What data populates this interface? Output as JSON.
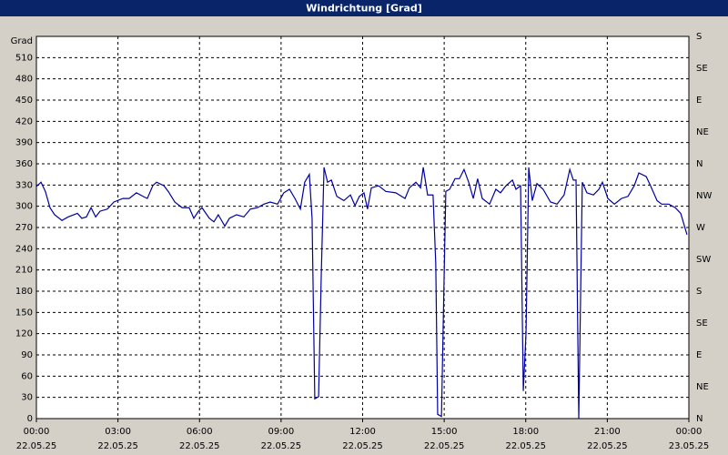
{
  "chart_data": {
    "type": "line",
    "title": "Windrichtung [Grad]",
    "ylabel": "Grad",
    "x": [
      0,
      0.17,
      0.33,
      0.5,
      0.67,
      0.94,
      1.17,
      1.51,
      1.67,
      1.84,
      2.01,
      2.18,
      2.34,
      2.61,
      2.85,
      3.18,
      3.41,
      3.68,
      3.92,
      4.08,
      4.28,
      4.42,
      4.69,
      4.85,
      5.09,
      5.36,
      5.62,
      5.79,
      5.96,
      6.09,
      6.36,
      6.53,
      6.69,
      6.93,
      7.1,
      7.36,
      7.63,
      7.87,
      8.13,
      8.37,
      8.6,
      8.87,
      9.1,
      9.31,
      9.51,
      9.71,
      9.87,
      10.04,
      10.14,
      10.24,
      10.38,
      10.48,
      10.58,
      10.71,
      10.85,
      11.05,
      11.31,
      11.55,
      11.72,
      11.88,
      12.05,
      12.18,
      12.32,
      12.59,
      12.85,
      13.22,
      13.56,
      13.72,
      13.96,
      14.13,
      14.23,
      14.39,
      14.59,
      14.69,
      14.76,
      14.9,
      15.0,
      15.06,
      15.2,
      15.4,
      15.56,
      15.73,
      15.9,
      16.07,
      16.23,
      16.4,
      16.67,
      16.9,
      17.07,
      17.27,
      17.51,
      17.64,
      17.81,
      17.91,
      18.01,
      18.11,
      18.24,
      18.41,
      18.64,
      18.91,
      19.15,
      19.41,
      19.62,
      19.75,
      19.85,
      19.95,
      20.08,
      20.25,
      20.49,
      20.69,
      20.82,
      21.02,
      21.26,
      21.52,
      21.76,
      21.99,
      22.16,
      22.43,
      22.59,
      22.83,
      23.0,
      23.26,
      23.5,
      23.7,
      23.93
    ],
    "series": [
      {
        "name": "Windrichtung",
        "color": "#0000a0",
        "values": [
          328,
          334,
          321,
          298,
          288,
          280,
          285,
          290,
          283,
          285,
          298,
          285,
          293,
          296,
          306,
          311,
          311,
          319,
          314,
          311,
          329,
          334,
          329,
          321,
          306,
          298,
          298,
          283,
          293,
          298,
          283,
          278,
          288,
          272,
          283,
          288,
          285,
          296,
          298,
          303,
          306,
          303,
          319,
          324,
          311,
          296,
          334,
          345,
          283,
          28,
          31,
          206,
          355,
          334,
          337,
          314,
          308,
          316,
          301,
          314,
          319,
          296,
          326,
          329,
          321,
          319,
          311,
          326,
          334,
          326,
          355,
          316,
          316,
          219,
          6,
          3,
          206,
          321,
          324,
          339,
          339,
          352,
          334,
          311,
          339,
          311,
          303,
          324,
          319,
          329,
          337,
          324,
          329,
          39,
          121,
          355,
          308,
          332,
          324,
          306,
          303,
          316,
          352,
          337,
          337,
          0,
          334,
          319,
          316,
          324,
          334,
          311,
          303,
          311,
          314,
          329,
          347,
          342,
          329,
          308,
          303,
          303,
          298,
          290,
          260
        ]
      }
    ],
    "xlim": [
      0,
      24
    ],
    "xticks": [
      {
        "value": 0,
        "label": "00:00"
      },
      {
        "value": 3,
        "label": "03:00"
      },
      {
        "value": 6,
        "label": "06:00"
      },
      {
        "value": 9,
        "label": "09:00"
      },
      {
        "value": 12,
        "label": "12:00"
      },
      {
        "value": 15,
        "label": "15:00"
      },
      {
        "value": 18,
        "label": "18:00"
      },
      {
        "value": 21,
        "label": "21:00"
      },
      {
        "value": 24,
        "label": "00:00"
      }
    ],
    "xtick_dates": [
      "22.05.25",
      "22.05.25",
      "22.05.25",
      "22.05.25",
      "22.05.25",
      "22.05.25",
      "22.05.25",
      "22.05.25",
      "23.05.25"
    ],
    "ylim": [
      0,
      540
    ],
    "yticks": [
      0,
      30,
      60,
      90,
      120,
      150,
      180,
      210,
      240,
      270,
      300,
      330,
      360,
      390,
      420,
      450,
      480,
      510
    ],
    "y2lim": [
      0,
      540
    ],
    "y2ticks": [
      {
        "value": 0,
        "label": "N"
      },
      {
        "value": 45,
        "label": "NE"
      },
      {
        "value": 90,
        "label": "E"
      },
      {
        "value": 135,
        "label": "SE"
      },
      {
        "value": 180,
        "label": "S"
      },
      {
        "value": 225,
        "label": "SW"
      },
      {
        "value": 270,
        "label": "W"
      },
      {
        "value": 315,
        "label": "NW"
      },
      {
        "value": 360,
        "label": "N"
      },
      {
        "value": 405,
        "label": "NE"
      },
      {
        "value": 450,
        "label": "E"
      },
      {
        "value": 495,
        "label": "SE"
      },
      {
        "value": 540,
        "label": "S"
      }
    ],
    "grid": true
  }
}
